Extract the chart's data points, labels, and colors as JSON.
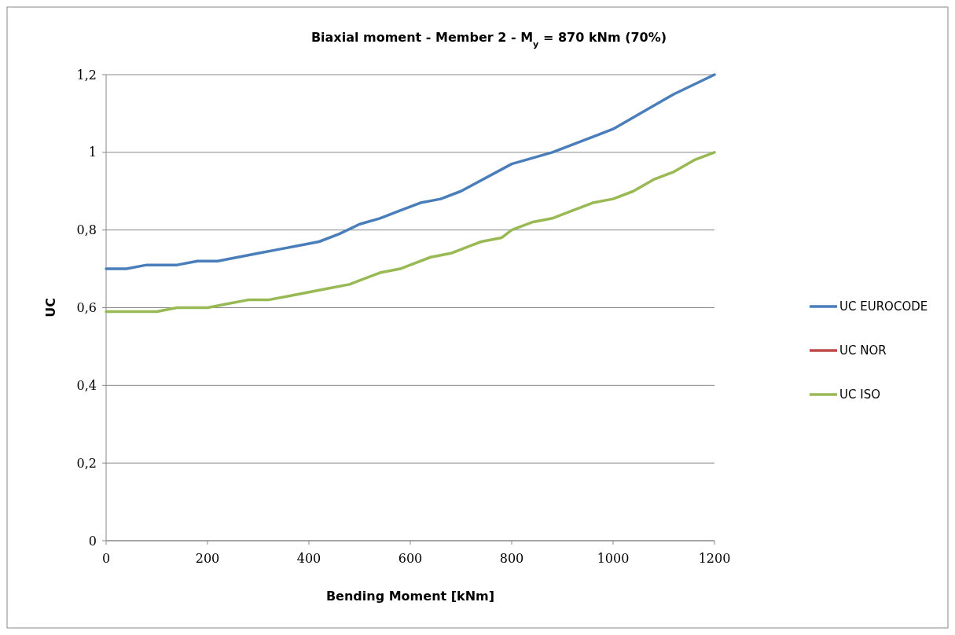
{
  "chart_data": {
    "type": "line",
    "title": "Biaxial moment  - Member  2 -  M$_{y}$ = 870 kNm (70%)",
    "xlabel": "Bending Moment [kNm]",
    "ylabel": "UC",
    "xlim": [
      0,
      1200
    ],
    "xticks": [
      0,
      200,
      400,
      600,
      800,
      1000,
      1200
    ],
    "ylim": [
      0,
      1.2
    ],
    "yticks": [
      {
        "value": 0,
        "label": "0"
      },
      {
        "value": 0.2,
        "label": "0,2"
      },
      {
        "value": 0.4,
        "label": "0,4"
      },
      {
        "value": 0.6,
        "label": "0,6"
      },
      {
        "value": 0.8,
        "label": "0,8"
      },
      {
        "value": 1,
        "label": "1"
      },
      {
        "value": 1.2,
        "label": "1,2"
      }
    ],
    "grid": "y",
    "legend": "right",
    "marker": "none",
    "line_style": "solid",
    "series": [
      {
        "name": "UC EUROCODE",
        "color": "#4a7ebb",
        "x": [
          0,
          40,
          80,
          120,
          140,
          180,
          220,
          260,
          300,
          340,
          380,
          420,
          460,
          500,
          540,
          580,
          620,
          660,
          700,
          800,
          880,
          1000,
          1080,
          1120,
          1200
        ],
        "values": [
          0.7,
          0.7,
          0.71,
          0.71,
          0.71,
          0.72,
          0.72,
          0.73,
          0.74,
          0.75,
          0.76,
          0.77,
          0.79,
          0.815,
          0.83,
          0.85,
          0.87,
          0.88,
          0.9,
          0.97,
          1.0,
          1.06,
          1.12,
          1.15,
          1.2
        ]
      },
      {
        "name": "UC NOR",
        "color": "#be4b48"
      },
      {
        "name": "UC ISO",
        "color": "#98b954",
        "x": [
          0,
          100,
          140,
          200,
          240,
          280,
          320,
          360,
          400,
          440,
          480,
          500,
          540,
          580,
          600,
          640,
          680,
          720,
          740,
          780,
          800,
          840,
          880,
          920,
          960,
          1000,
          1040,
          1080,
          1120,
          1160,
          1200
        ],
        "values": [
          0.59,
          0.59,
          0.6,
          0.6,
          0.61,
          0.62,
          0.62,
          0.63,
          0.64,
          0.65,
          0.66,
          0.67,
          0.69,
          0.7,
          0.71,
          0.73,
          0.74,
          0.76,
          0.77,
          0.78,
          0.8,
          0.82,
          0.83,
          0.85,
          0.87,
          0.88,
          0.9,
          0.93,
          0.95,
          0.98,
          1.0
        ]
      }
    ]
  }
}
